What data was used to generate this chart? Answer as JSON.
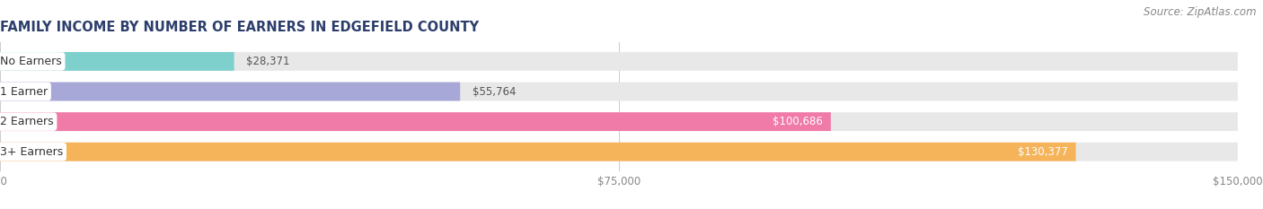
{
  "title": "FAMILY INCOME BY NUMBER OF EARNERS IN EDGEFIELD COUNTY",
  "source": "Source: ZipAtlas.com",
  "categories": [
    "No Earners",
    "1 Earner",
    "2 Earners",
    "3+ Earners"
  ],
  "values": [
    28371,
    55764,
    100686,
    130377
  ],
  "labels": [
    "$28,371",
    "$55,764",
    "$100,686",
    "$130,377"
  ],
  "bar_colors": [
    "#7dd0cc",
    "#a8a8d8",
    "#f07aa8",
    "#f5b45a"
  ],
  "bar_bg_color": "#e8e8e8",
  "label_colors": [
    "#444444",
    "#444444",
    "#ffffff",
    "#ffffff"
  ],
  "xlim": [
    0,
    150000
  ],
  "xticks": [
    0,
    75000,
    150000
  ],
  "xticklabels": [
    "$0",
    "$75,000",
    "$150,000"
  ],
  "fig_bg_color": "#ffffff",
  "title_fontsize": 10.5,
  "source_fontsize": 8.5,
  "title_color": "#2c3e6b",
  "source_color": "#888888"
}
